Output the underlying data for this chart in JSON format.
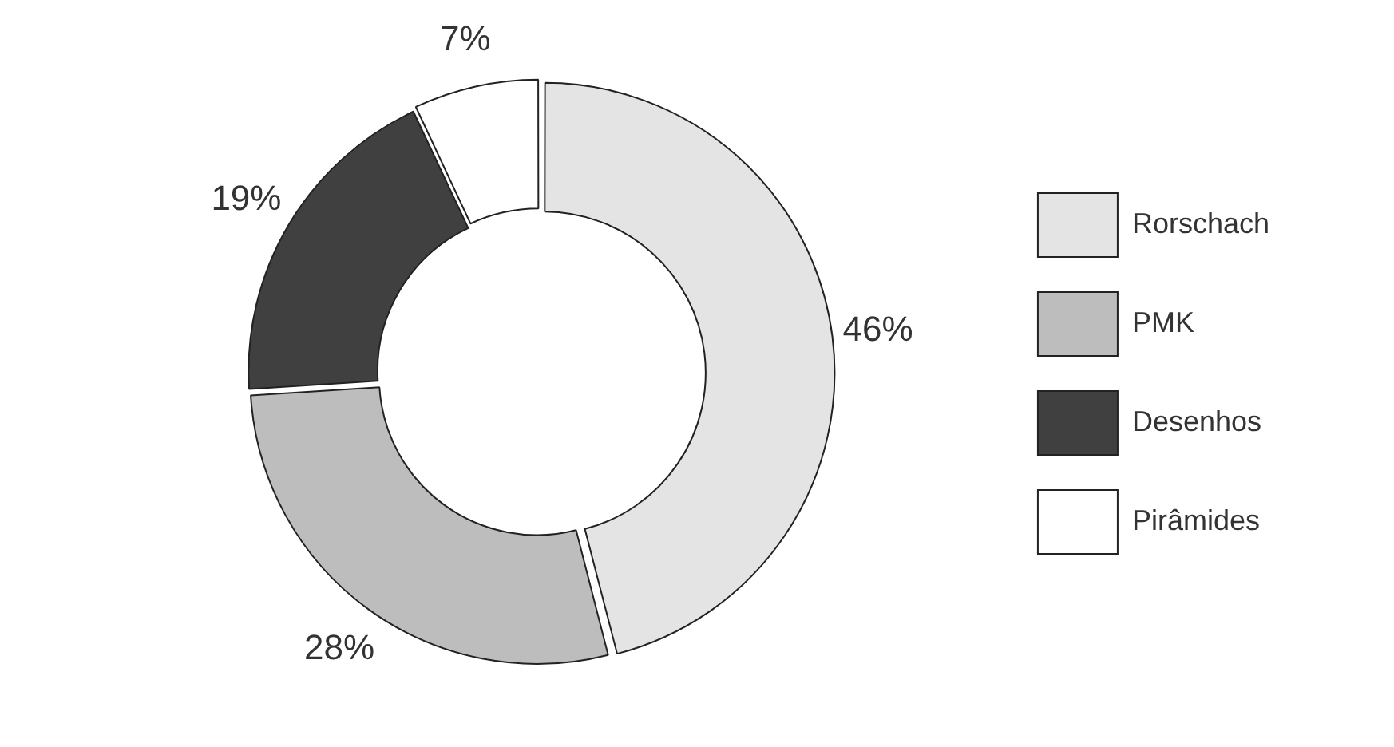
{
  "chart_data": {
    "type": "donut",
    "categories": [
      "Rorschach",
      "PMK",
      "Desenhos",
      "Pirâmides"
    ],
    "values": [
      46,
      28,
      19,
      7
    ],
    "colors": [
      "#e4e4e4",
      "#bdbdbd",
      "#404040",
      "#ffffff"
    ],
    "value_labels": [
      "46%",
      "28%",
      "19%",
      "7%"
    ],
    "legend": "right"
  }
}
